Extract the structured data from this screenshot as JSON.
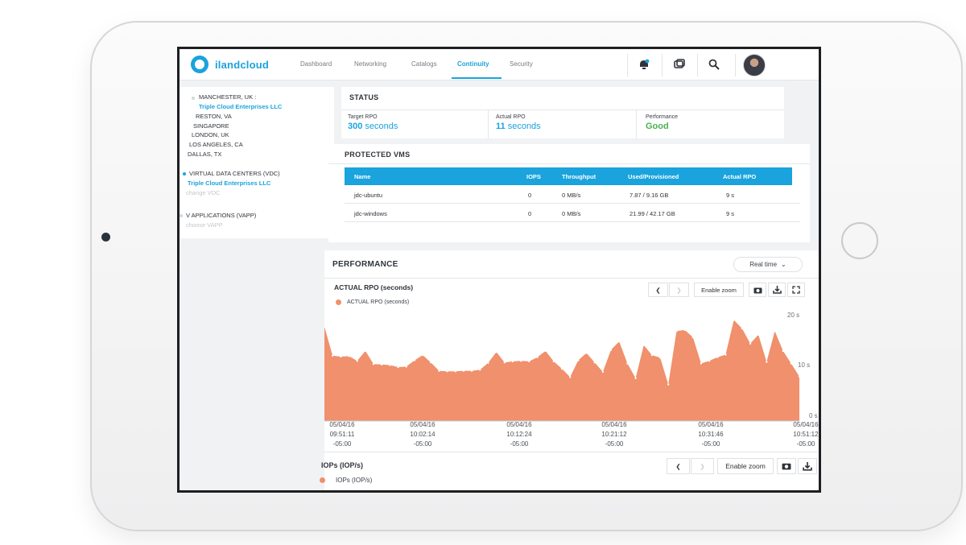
{
  "app": {
    "brand": "ilandcloud",
    "nav_tabs": [
      "Dashboard",
      "Networking",
      "Catalogs",
      "Continuity",
      "Security"
    ],
    "active_tab": "Continuity"
  },
  "sites": {
    "locations": [
      {
        "label": "MANCHESTER, UK :"
      },
      {
        "label": "Triple Cloud Enterprises LLC",
        "link": true
      },
      {
        "label": "RESTON, VA"
      },
      {
        "label": "SINGAPORE"
      },
      {
        "label": "LONDON, UK"
      },
      {
        "label": "LOS ANGELES, CA"
      },
      {
        "label": "DALLAS, TX"
      }
    ],
    "vdc": {
      "heading": "VIRTUAL DATA CENTERS (VDC)",
      "selected": "Triple Cloud Enterprises LLC",
      "change": "change VDC"
    },
    "vapp": {
      "heading": "V APPLICATIONS (VAPP)",
      "choose": "choose VAPP"
    }
  },
  "status": {
    "title": "STATUS",
    "target_rpo": {
      "label": "Target RPO",
      "value": "300",
      "unit": "seconds"
    },
    "actual_rpo": {
      "label": "Actual RPO",
      "value": "11",
      "unit": "seconds"
    },
    "performance": {
      "label": "Performance",
      "value": "Good"
    }
  },
  "protected_vms": {
    "title": "PROTECTED VMS",
    "columns": [
      "Name",
      "IOPS",
      "Throughput",
      "Used/Provisioned",
      "Actual RPO"
    ],
    "rows": [
      [
        "jdc-ubuntu",
        "0",
        "0 MB/s",
        "7.87 / 9.16 GB",
        "9 s"
      ],
      [
        "jdc-windows",
        "0",
        "0 MB/s",
        "21.99 / 42.17 GB",
        "9 s"
      ]
    ]
  },
  "performance": {
    "title": "PERFORMANCE",
    "range_select": "Real time",
    "enable_zoom": "Enable zoom",
    "iops_title": "IOPs (IOP/s)",
    "iops_legend": "IOPs (IOP/s)"
  },
  "colors": {
    "accent": "#1aa3dc",
    "good": "#4cb050",
    "series": "#f0906c"
  },
  "chart_data": {
    "type": "area",
    "title": "ACTUAL RPO (seconds)",
    "series": [
      {
        "name": "ACTUAL RPO (seconds)",
        "values": [
          18,
          12.5,
          12.3,
          12.4,
          11.5,
          13.4,
          10.9,
          10.8,
          10.7,
          10.3,
          10.4,
          11.6,
          12.6,
          11.2,
          9.6,
          9.5,
          9.5,
          9.6,
          9.6,
          9.8,
          11.1,
          13.2,
          11.2,
          11.4,
          11.5,
          11.4,
          12.2,
          13.4,
          11.4,
          10.0,
          8.4,
          11.6,
          13.0,
          11.2,
          9.4,
          13.6,
          15.2,
          11.0,
          8.2,
          14.5,
          12.6,
          12.1,
          7.0,
          17.2,
          17.4,
          16.0,
          11.0,
          11.5,
          12.2,
          12.7,
          19.3,
          17.7,
          14.8,
          16.5,
          11.3,
          17.2,
          13.4,
          11.0,
          8.5
        ]
      }
    ],
    "ylim": [
      0,
      20
    ],
    "yticks": [
      "20 s",
      "10 s",
      "0 s"
    ],
    "xticks": [
      "05/04/16\n09:51:11\n-05:00",
      "05/04/16\n10:02:14\n-05:00",
      "05/04/16\n10:12:24\n-05:00",
      "05/04/16\n10:21:12\n-05:00",
      "05/04/16\n10:31:46\n-05:00",
      "05/04/16\n10:51:12\n-05:00"
    ],
    "grid": false,
    "legend": "top-left"
  }
}
